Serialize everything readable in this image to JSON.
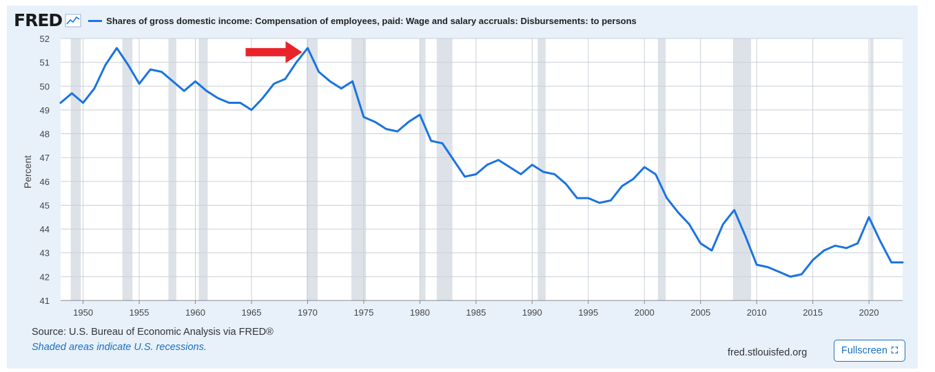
{
  "header": {
    "logo_text": "FRED",
    "logo_icon": "line-graph-icon",
    "title": "Shares of gross domestic income: Compensation of employees, paid: Wage and salary accruals: Disbursements: to persons"
  },
  "footer": {
    "source": "Source: U.S. Bureau of Economic Analysis via FRED®",
    "note": "Shaded areas indicate U.S. recessions.",
    "site": "fred.stlouisfed.org",
    "fullscreen_label": "Fullscreen",
    "fullscreen_icon": "expand-icon"
  },
  "colors": {
    "series": "#1a73e0",
    "recession": "#dde2e8",
    "arrow": "#e8242a",
    "background": "#e8f1fa"
  },
  "chart_data": {
    "type": "line",
    "title": "Shares of gross domestic income: Compensation of employees, paid: Wage and salary accruals: Disbursements: to persons",
    "xlabel": "",
    "ylabel": "Percent",
    "xlim": [
      1948,
      2023
    ],
    "ylim": [
      41,
      52
    ],
    "x_ticks": [
      1950,
      1955,
      1960,
      1965,
      1970,
      1975,
      1980,
      1985,
      1990,
      1995,
      2000,
      2005,
      2010,
      2015,
      2020
    ],
    "y_ticks": [
      41,
      42,
      43,
      44,
      45,
      46,
      47,
      48,
      49,
      50,
      51,
      52
    ],
    "grid": true,
    "annotation": {
      "type": "arrow",
      "points_to_x": 1970,
      "points_to_y": 51.6
    },
    "recessions": [
      [
        1948.9,
        1949.8
      ],
      [
        1953.5,
        1954.4
      ],
      [
        1957.6,
        1958.3
      ],
      [
        1960.3,
        1961.1
      ],
      [
        1969.9,
        1970.9
      ],
      [
        1973.9,
        1975.2
      ],
      [
        1980.0,
        1980.5
      ],
      [
        1981.5,
        1982.9
      ],
      [
        1990.5,
        1991.2
      ],
      [
        2001.2,
        2001.9
      ],
      [
        2007.9,
        2009.5
      ],
      [
        2020.1,
        2020.4
      ]
    ],
    "series": [
      {
        "x": [
          1948,
          1949,
          1950,
          1951,
          1952,
          1953,
          1954,
          1955,
          1956,
          1957,
          1958,
          1959,
          1960,
          1961,
          1962,
          1963,
          1964,
          1965,
          1966,
          1967,
          1968,
          1969,
          1970,
          1971,
          1972,
          1973,
          1974,
          1975,
          1976,
          1977,
          1978,
          1979,
          1980,
          1981,
          1982,
          1983,
          1984,
          1985,
          1986,
          1987,
          1988,
          1989,
          1990,
          1991,
          1992,
          1993,
          1994,
          1995,
          1996,
          1997,
          1998,
          1999,
          2000,
          2001,
          2002,
          2003,
          2004,
          2005,
          2006,
          2007,
          2008,
          2009,
          2010,
          2011,
          2012,
          2013,
          2014,
          2015,
          2016,
          2017,
          2018,
          2019,
          2020,
          2021,
          2022,
          2023
        ],
        "values": [
          49.3,
          49.7,
          49.3,
          49.9,
          50.9,
          51.6,
          50.9,
          50.1,
          50.7,
          50.6,
          50.2,
          49.8,
          50.2,
          49.8,
          49.5,
          49.3,
          49.3,
          49.0,
          49.5,
          50.1,
          50.3,
          51.0,
          51.6,
          50.6,
          50.2,
          49.9,
          50.2,
          48.7,
          48.5,
          48.2,
          48.1,
          48.5,
          48.8,
          47.7,
          47.6,
          46.9,
          46.2,
          46.3,
          46.7,
          46.9,
          46.6,
          46.3,
          46.7,
          46.4,
          46.3,
          45.9,
          45.3,
          45.3,
          45.1,
          45.2,
          45.8,
          46.1,
          46.6,
          46.3,
          45.3,
          44.7,
          44.2,
          43.4,
          43.1,
          44.2,
          44.8,
          43.7,
          42.5,
          42.4,
          42.2,
          42.0,
          42.1,
          42.7,
          43.1,
          43.3,
          43.2,
          43.4,
          44.5,
          43.5,
          42.6,
          42.6
        ]
      }
    ]
  }
}
